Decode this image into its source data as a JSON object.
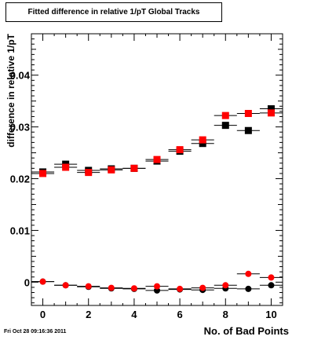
{
  "chart_data": {
    "type": "scatter",
    "title": "Fitted difference in relative 1/pT  Global Tracks",
    "xlabel": "No. of Bad Points",
    "ylabel": "difference in relative 1/pT",
    "xlim": [
      -0.5,
      10.5
    ],
    "ylim": [
      -0.0045,
      0.048
    ],
    "xticks": [
      0,
      2,
      4,
      6,
      8,
      10
    ],
    "yticks": [
      0,
      0.01,
      0.02,
      0.03,
      0.04
    ],
    "ytick_labels": [
      "0",
      "0.01",
      "0.02",
      "0.03",
      "0.04"
    ],
    "grid": false,
    "series": [
      {
        "marker": "square",
        "color": "#000000",
        "x": [
          0,
          1,
          2,
          3,
          4,
          5,
          6,
          7,
          8,
          9,
          10
        ],
        "y": [
          0.0213,
          0.0228,
          0.0216,
          0.0219,
          0.022,
          0.0234,
          0.0253,
          0.0268,
          0.0303,
          0.0293,
          0.0335
        ]
      },
      {
        "marker": "square",
        "color": "#ff0000",
        "x": [
          0,
          1,
          2,
          3,
          4,
          5,
          6,
          7,
          8,
          9,
          10
        ],
        "y": [
          0.021,
          0.0222,
          0.0212,
          0.0217,
          0.022,
          0.0237,
          0.0256,
          0.0275,
          0.0322,
          0.0326,
          0.0327
        ]
      },
      {
        "marker": "circle",
        "color": "#000000",
        "x": [
          0,
          1,
          2,
          3,
          4,
          5,
          6,
          7,
          8,
          9,
          10
        ],
        "y": [
          0.0001,
          -0.0006,
          -0.0009,
          -0.0012,
          -0.0013,
          -0.0016,
          -0.0014,
          -0.0015,
          -0.0012,
          -0.0013,
          -0.0006
        ]
      },
      {
        "marker": "circle",
        "color": "#ff0000",
        "x": [
          0,
          1,
          2,
          3,
          4,
          5,
          6,
          7,
          8,
          9,
          10
        ],
        "y": [
          0.0001,
          -0.0006,
          -0.0008,
          -0.0011,
          -0.0012,
          -0.0008,
          -0.0013,
          -0.0011,
          -0.0006,
          0.0016,
          0.0009
        ]
      }
    ]
  },
  "footer": {
    "timestamp": "Fri Oct 28 09:16:36 2011"
  }
}
